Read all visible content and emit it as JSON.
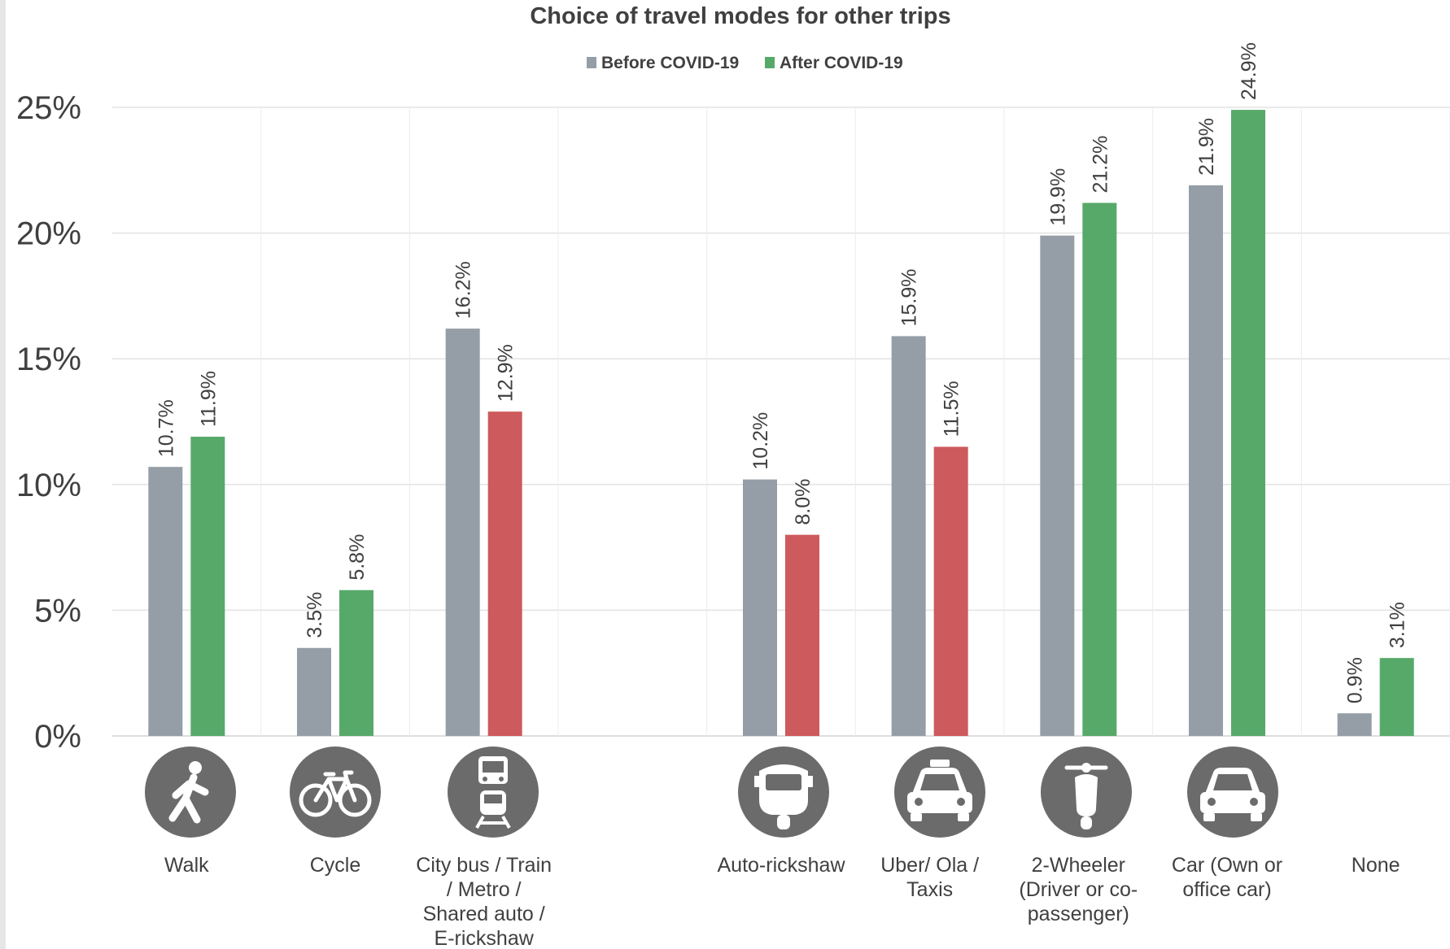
{
  "chart_data": {
    "type": "bar",
    "title": "Choice of travel modes for other trips",
    "xlabel": "",
    "ylabel": "",
    "ylim": [
      0,
      25
    ],
    "yticks": [
      "0%",
      "5%",
      "10%",
      "15%",
      "20%",
      "25%"
    ],
    "grid": true,
    "legend_position": "top-center",
    "categories": [
      {
        "lines": [
          "Walk"
        ],
        "icon": "walking-person-icon"
      },
      {
        "lines": [
          "Cycle"
        ],
        "icon": "bicycle-icon"
      },
      {
        "lines": [
          "City bus / Train",
          "/ Metro /",
          "Shared auto /",
          "E-rickshaw"
        ],
        "icon": "bus-train-icon"
      },
      {
        "lines": [],
        "icon": ""
      },
      {
        "lines": [
          "Auto-rickshaw"
        ],
        "icon": "auto-rickshaw-icon"
      },
      {
        "lines": [
          "Uber/ Ola /",
          "Taxis"
        ],
        "icon": "taxi-icon"
      },
      {
        "lines": [
          "2-Wheeler",
          "(Driver or co-",
          "passenger)"
        ],
        "icon": "scooter-icon"
      },
      {
        "lines": [
          "Car (Own or",
          "office car)"
        ],
        "icon": "car-icon"
      },
      {
        "lines": [
          "None"
        ],
        "icon": ""
      }
    ],
    "series": [
      {
        "name": "Before COVID-19",
        "color": "#959ea7",
        "values": [
          10.7,
          3.5,
          16.2,
          null,
          10.2,
          15.9,
          19.9,
          21.9,
          0.9
        ],
        "labels": [
          "10.7%",
          "3.5%",
          "16.2%",
          "",
          "10.2%",
          "15.9%",
          "19.9%",
          "21.9%",
          "0.9%"
        ]
      },
      {
        "name": "After COVID-19",
        "color": "#57a96a",
        "values": [
          11.9,
          5.8,
          12.9,
          null,
          8.0,
          11.5,
          21.2,
          24.9,
          3.1
        ],
        "labels": [
          "11.9%",
          "5.8%",
          "12.9%",
          "",
          "8.0%",
          "11.5%",
          "21.2%",
          "24.9%",
          "3.1%"
        ]
      }
    ],
    "decrease_color": "#cd5a5c",
    "icon_color": "#6b6b6b"
  }
}
